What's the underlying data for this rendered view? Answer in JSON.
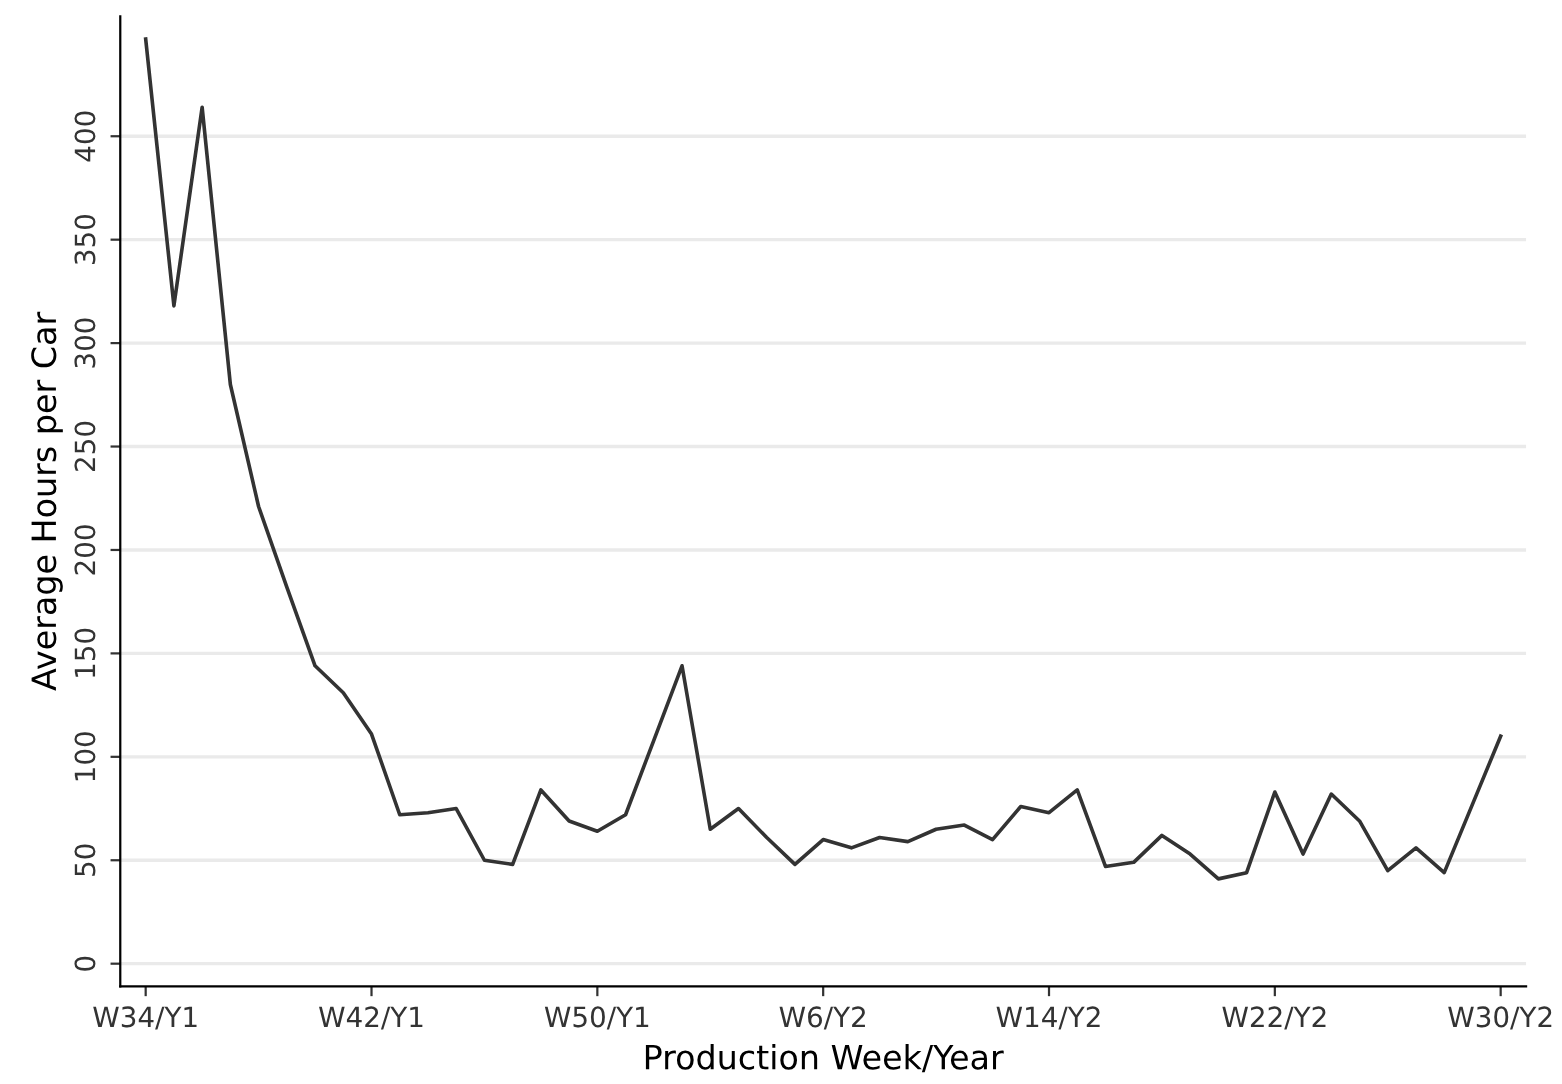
{
  "chart_data": {
    "type": "line",
    "xlabel": "Production Week/Year",
    "ylabel": "Average Hours per Car",
    "categories": [
      "W34/Y1",
      null,
      null,
      null,
      null,
      null,
      null,
      null,
      "W42/Y1",
      null,
      null,
      null,
      null,
      null,
      null,
      null,
      "W50/Y1",
      null,
      null,
      null,
      null,
      null,
      null,
      null,
      "W6/Y2",
      null,
      null,
      null,
      null,
      null,
      null,
      null,
      "W14/Y2",
      null,
      null,
      null,
      null,
      null,
      null,
      null,
      "W22/Y2",
      null,
      null,
      null,
      null,
      null,
      null,
      null,
      "W30/Y2"
    ],
    "series": [
      {
        "color": "#333333",
        "values": [
          447,
          318,
          414,
          280,
          221,
          182,
          144,
          131,
          111,
          72,
          73,
          75,
          50,
          48,
          84,
          69,
          64,
          72,
          108,
          144,
          65,
          75,
          61,
          48,
          60,
          56,
          61,
          59,
          65,
          67,
          60,
          76,
          73,
          84,
          47,
          49,
          62,
          53,
          41,
          44,
          83,
          53,
          82,
          69,
          45,
          56,
          44,
          77,
          110
        ]
      }
    ],
    "ylim": [
      -11,
      458
    ],
    "yticks": [
      0,
      50,
      100,
      150,
      200,
      250,
      300,
      350,
      400
    ],
    "grid": "y",
    "line_style": "solid",
    "marker": "none",
    "legend": false
  }
}
